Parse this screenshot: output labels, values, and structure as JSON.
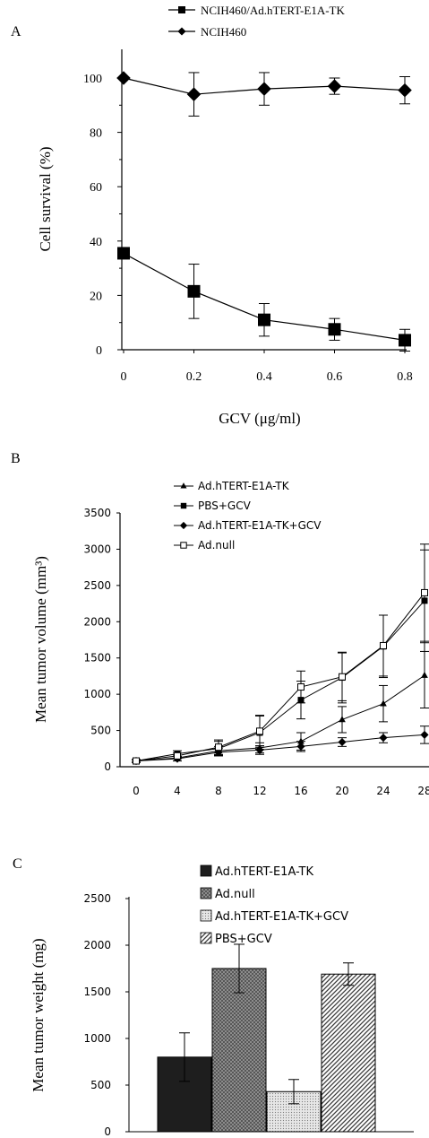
{
  "chart_data": [
    {
      "panel_label": "A",
      "type": "line",
      "xlabel": "GCV (μg/ml)",
      "ylabel": "Cell survival (%)",
      "x": [
        0,
        0.2,
        0.4,
        0.6,
        0.8
      ],
      "x_tick_labels": [
        "0",
        "0.2",
        "0.4",
        "0.6",
        "0.8"
      ],
      "ylim": [
        0,
        110
      ],
      "y_ticks": [
        0,
        20,
        40,
        60,
        80,
        100
      ],
      "legend_position": "top-center",
      "grid": false,
      "series": [
        {
          "name": "NCIH460/Ad.hTERT-E1A-TK",
          "marker": "square",
          "values": [
            35.5,
            21.5,
            11,
            7.5,
            3.5
          ],
          "error": [
            1.5,
            10,
            6,
            4,
            4
          ]
        },
        {
          "name": "NCIH460",
          "marker": "diamond",
          "values": [
            100,
            94,
            96,
            97,
            95.5
          ],
          "error": [
            0,
            8,
            6,
            3,
            5
          ]
        }
      ]
    },
    {
      "panel_label": "B",
      "type": "line",
      "xlabel": "",
      "ylabel": "Mean tumor volume (mm³)",
      "x": [
        0,
        4,
        8,
        12,
        16,
        20,
        24,
        28
      ],
      "x_tick_labels": [
        "0",
        "4",
        "8",
        "12",
        "16",
        "20",
        "24",
        "28"
      ],
      "ylim": [
        0,
        3500
      ],
      "y_ticks": [
        0,
        500,
        1000,
        1500,
        2000,
        2500,
        3000,
        3500
      ],
      "legend_position": "top-left",
      "grid": false,
      "series": [
        {
          "name": "Ad.hTERT-E1A-TK",
          "marker": "triangle",
          "values": [
            80,
            120,
            220,
            260,
            350,
            650,
            870,
            1260
          ],
          "error": [
            20,
            40,
            60,
            70,
            120,
            180,
            250,
            450
          ]
        },
        {
          "name": "PBS+GCV",
          "marker": "square",
          "values": [
            80,
            180,
            250,
            470,
            920,
            1230,
            1660,
            2290
          ],
          "error": [
            20,
            40,
            100,
            230,
            260,
            350,
            430,
            700
          ]
        },
        {
          "name": "Ad.hTERT-E1A-TK+GCV",
          "marker": "diamond",
          "values": [
            80,
            110,
            200,
            230,
            280,
            340,
            400,
            440
          ],
          "error": [
            15,
            30,
            50,
            60,
            70,
            60,
            70,
            120
          ]
        },
        {
          "name": "Ad.null",
          "marker": "open-square",
          "values": [
            80,
            150,
            270,
            490,
            1100,
            1240,
            1670,
            2400
          ],
          "error": [
            20,
            40,
            100,
            220,
            220,
            330,
            420,
            670
          ]
        }
      ]
    },
    {
      "panel_label": "C",
      "type": "bar",
      "xlabel": "",
      "ylabel": "Mean tumor weight (mg)",
      "ylim": [
        0,
        2500
      ],
      "y_ticks": [
        0,
        500,
        1000,
        1500,
        2000,
        2500
      ],
      "legend_position": "top-center",
      "grid": false,
      "categories": [
        "Ad.hTERT-E1A-TK",
        "Ad.null",
        "Ad.hTERT-E1A-TK+GCV",
        "PBS+GCV"
      ],
      "series": [
        {
          "name": "Mean tumor weight",
          "values": [
            800,
            1750,
            430,
            1690
          ],
          "error": [
            260,
            260,
            130,
            120
          ]
        }
      ],
      "fills": [
        "solid-dark",
        "crosshatch",
        "dotted",
        "diagonal"
      ]
    }
  ]
}
